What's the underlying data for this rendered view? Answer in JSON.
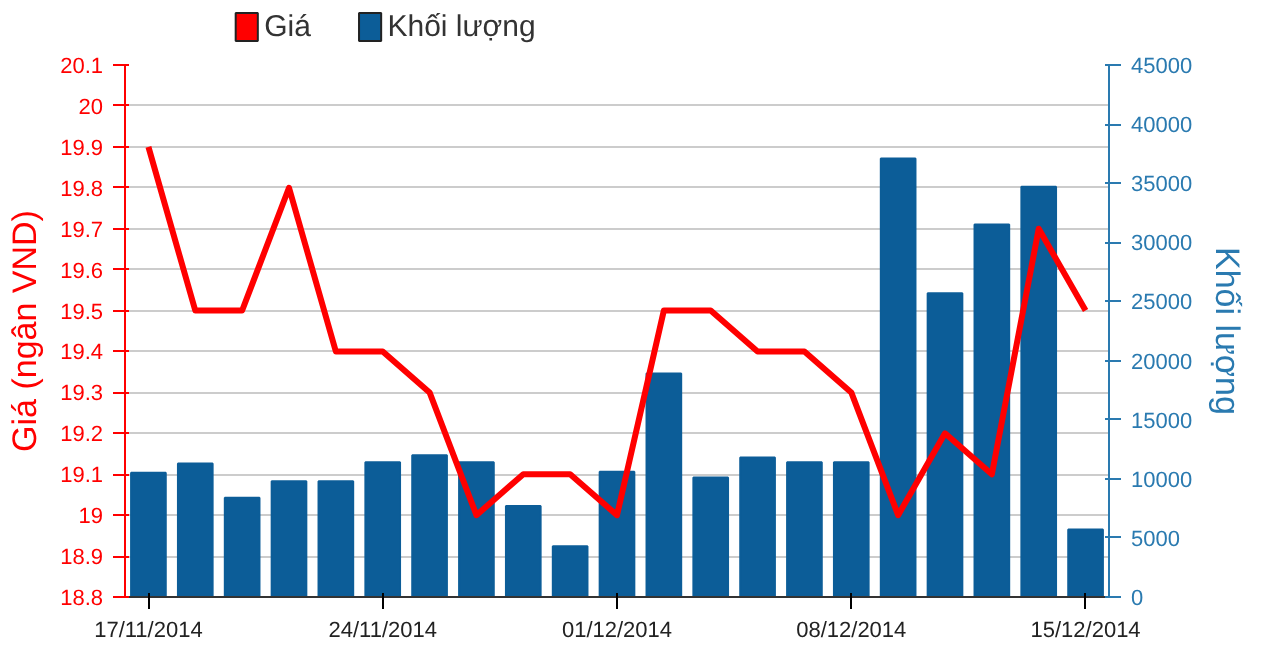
{
  "chart_data": {
    "type": "line",
    "ylabel": "Giá (ngân VND)",
    "y2label": "Khối lượng",
    "categories": [
      "17/11/2014",
      null,
      null,
      null,
      null,
      "24/11/2014",
      null,
      null,
      null,
      null,
      "01/12/2014",
      null,
      null,
      null,
      null,
      "08/12/2014",
      null,
      null,
      null,
      null,
      "15/12/2014"
    ],
    "series": [
      {
        "name": "Giá",
        "axis": "y",
        "color": "#ff0000",
        "values": [
          19.9,
          19.5,
          19.5,
          19.8,
          19.4,
          19.4,
          19.3,
          19.0,
          19.1,
          19.1,
          19.0,
          19.5,
          19.5,
          19.4,
          19.4,
          19.3,
          19.0,
          19.2,
          19.1,
          19.7,
          19.5
        ]
      },
      {
        "name": "Khối lượng",
        "type": "bar",
        "axis": "y2",
        "color": "#0c5d98",
        "values": [
          10500,
          11300,
          8400,
          9800,
          9800,
          11400,
          12000,
          11400,
          7700,
          4300,
          10600,
          18900,
          10100,
          11800,
          11400,
          11400,
          37100,
          25700,
          31500,
          34700,
          5700
        ]
      }
    ],
    "ylim": [
      18.8,
      20.1
    ],
    "yticks": [
      18.8,
      18.9,
      19,
      19.1,
      19.2,
      19.3,
      19.4,
      19.5,
      19.6,
      19.7,
      19.8,
      19.9,
      20,
      20.1
    ],
    "y2lim": [
      0,
      45000
    ],
    "y2ticks": [
      0,
      5000,
      10000,
      15000,
      20000,
      25000,
      30000,
      35000,
      40000,
      45000
    ],
    "grid": "y",
    "legend": "top left"
  }
}
